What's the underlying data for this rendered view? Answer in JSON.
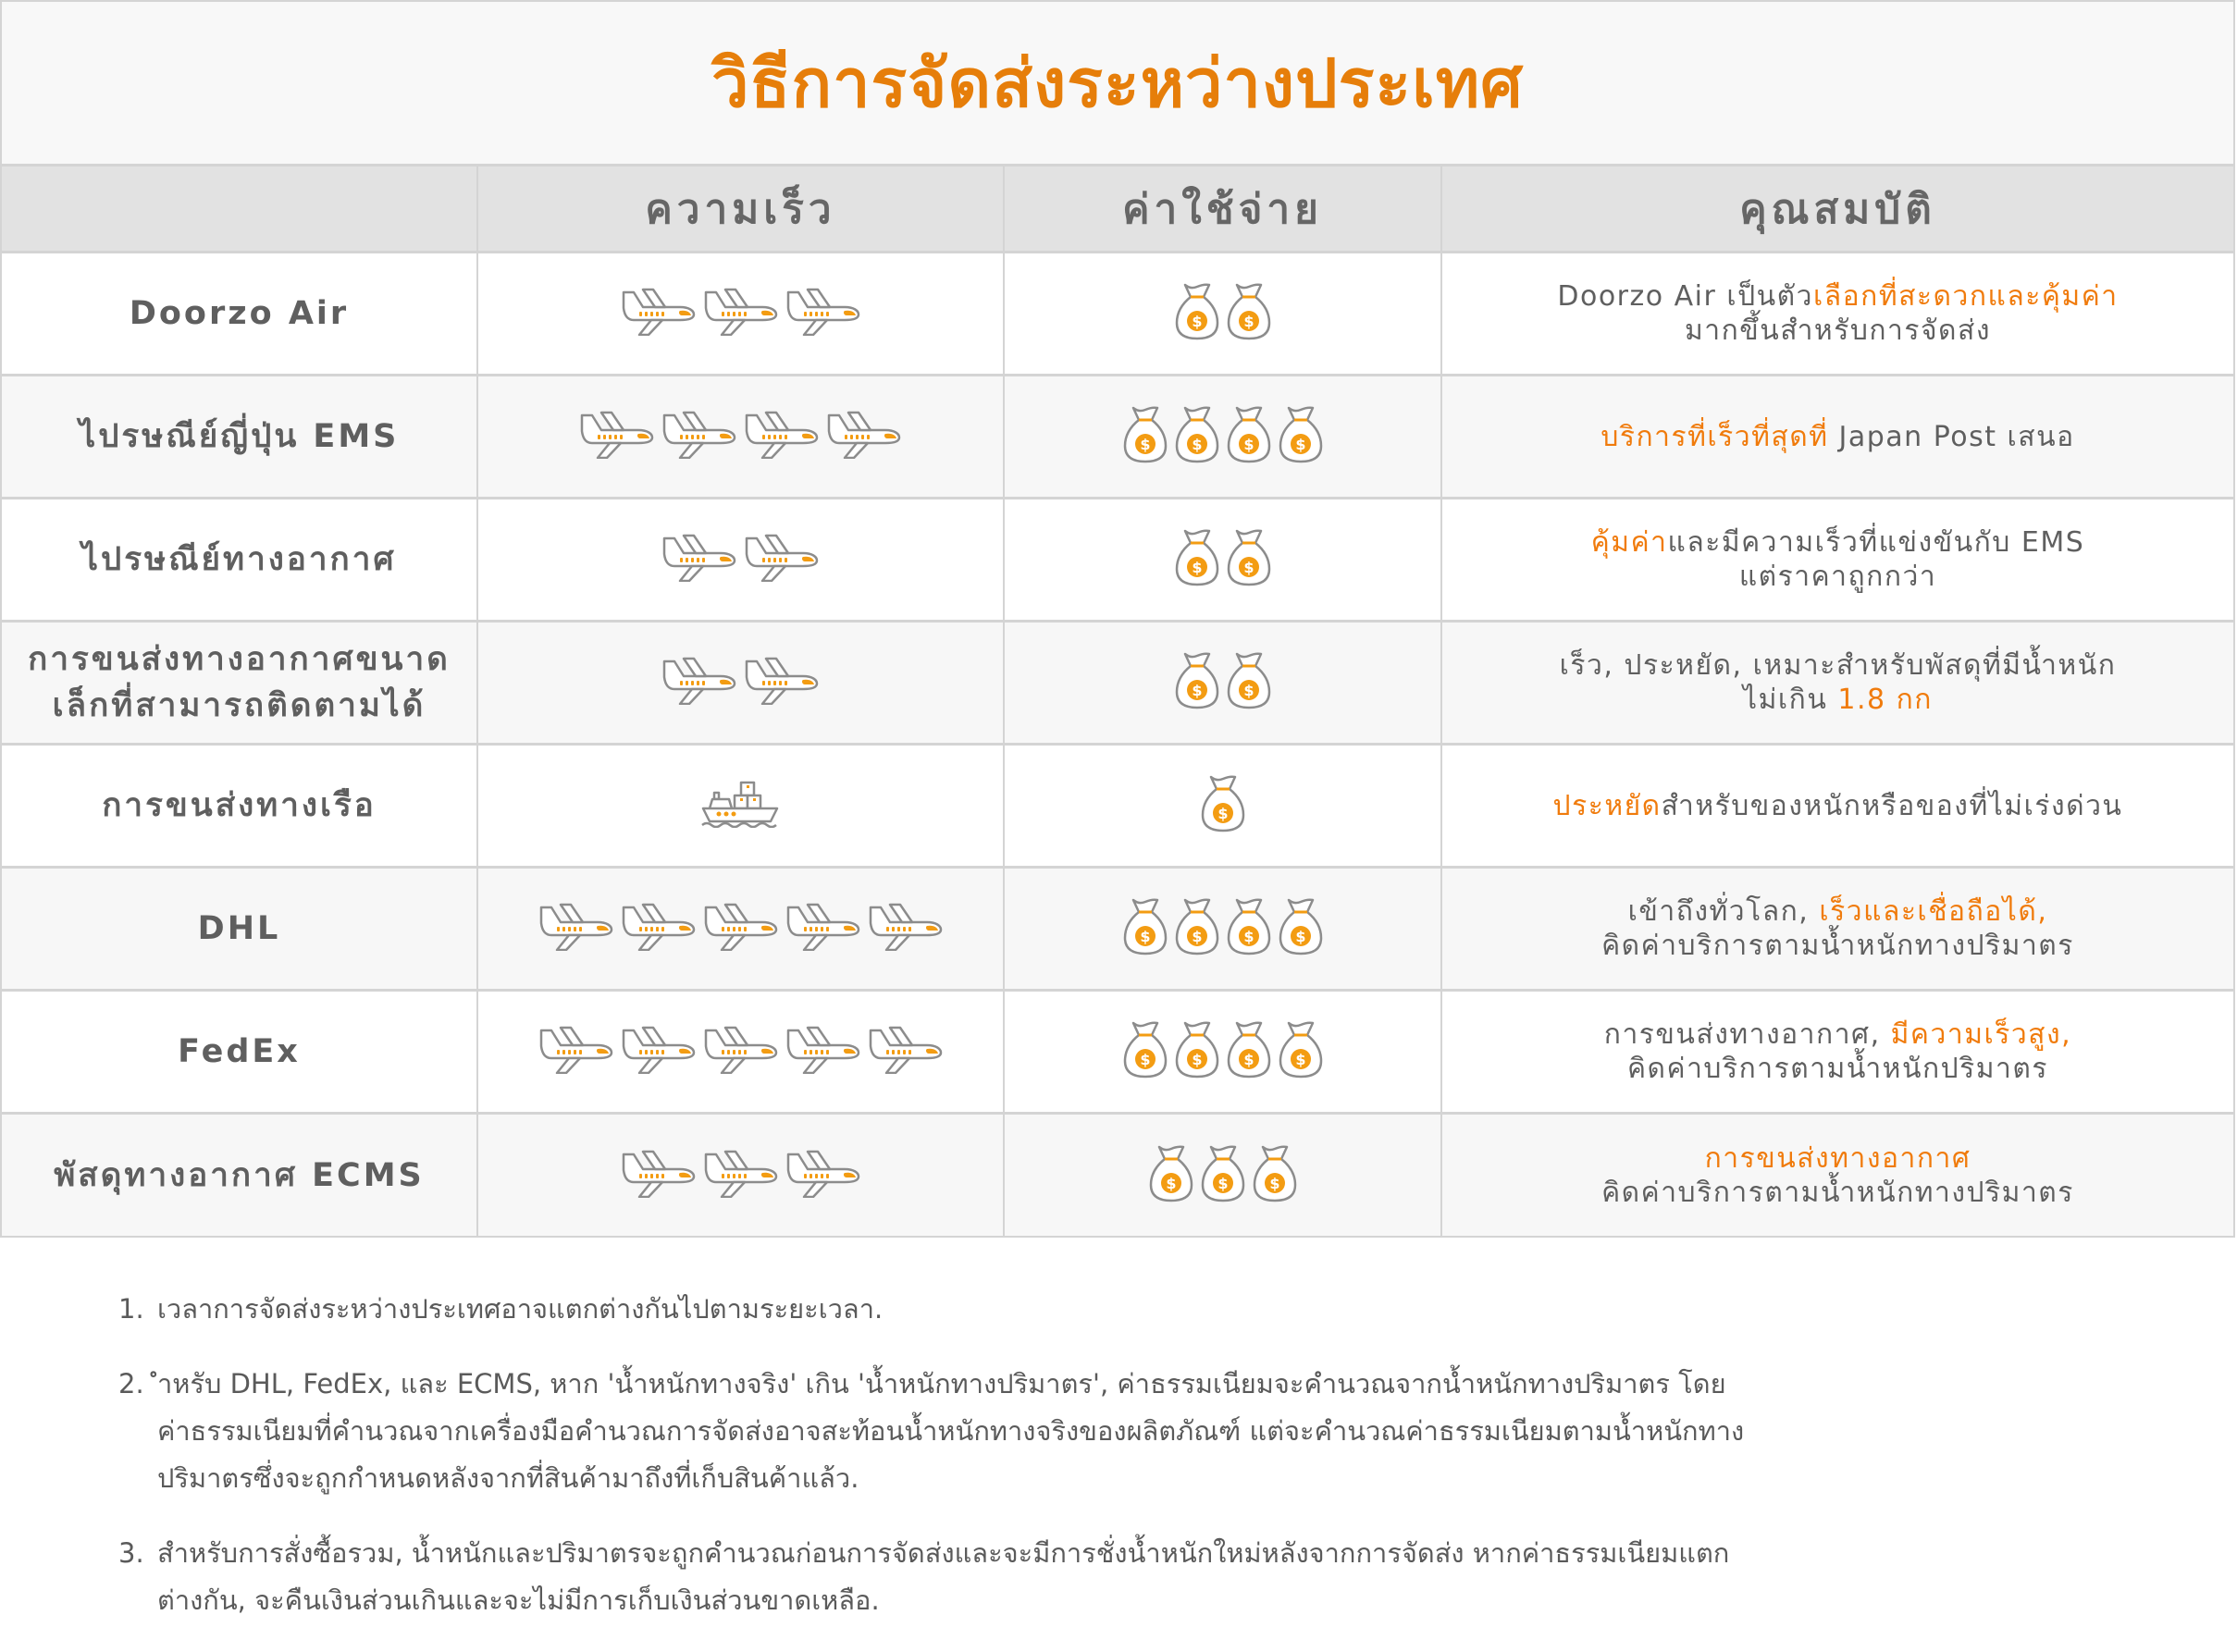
{
  "title": "วิธีการจัดส่งระหว่างประเทศ",
  "headers": [
    "",
    "ความเร็ว",
    "ค่าใช้จ่าย",
    "คุณสมบัติ"
  ],
  "colors": {
    "accent": "#e67e0a",
    "highlight": "#f07b0c",
    "text": "#5f5f5f",
    "header_bg": "#e2e2e2"
  },
  "rows": [
    {
      "name": "Doorzo Air",
      "speed_icon": "airplane-icon",
      "speed": 3,
      "cost": 2,
      "desc": [
        [
          {
            "t": "Doorzo Air เป็นตัว",
            "hl": false
          },
          {
            "t": "เลือกที่สะดวกและคุ้มค่า",
            "hl": true
          }
        ],
        [
          {
            "t": "มากขึ้นสำหรับการจัดส่ง",
            "hl": false
          }
        ]
      ]
    },
    {
      "name": "ไปรษณีย์ญี่ปุ่น EMS",
      "speed_icon": "airplane-icon",
      "speed": 4,
      "cost": 4,
      "desc": [
        [
          {
            "t": "บริการที่เร็วที่สุดที่",
            "hl": true
          },
          {
            "t": " Japan Post เสนอ",
            "hl": false
          }
        ]
      ]
    },
    {
      "name": "ไปรษณีย์ทางอากาศ",
      "speed_icon": "airplane-icon",
      "speed": 2,
      "cost": 2,
      "desc": [
        [
          {
            "t": "คุ้มค่า",
            "hl": true
          },
          {
            "t": "และมีความเร็วที่แข่งขันกับ EMS",
            "hl": false
          }
        ],
        [
          {
            "t": "แต่ราคาถูกกว่า",
            "hl": false
          }
        ]
      ]
    },
    {
      "name": "การขนส่งทางอากาศขนาดเล็กที่สามารถติดตามได้",
      "speed_icon": "airplane-icon",
      "speed": 2,
      "cost": 2,
      "desc": [
        [
          {
            "t": "เร็ว, ประหยัด, เหมาะสำหรับพัสดุที่มีน้ำหนัก",
            "hl": false
          }
        ],
        [
          {
            "t": "ไม่เกิน ",
            "hl": false
          },
          {
            "t": "1.8 กก",
            "hl": true
          }
        ]
      ]
    },
    {
      "name": "การขนส่งทางเรือ",
      "speed_icon": "ship-icon",
      "speed": 1,
      "cost": 1,
      "desc": [
        [
          {
            "t": "ประหยัด",
            "hl": true
          },
          {
            "t": "สำหรับของหนักหรือของที่ไม่เร่งด่วน",
            "hl": false
          }
        ]
      ]
    },
    {
      "name": "DHL",
      "speed_icon": "airplane-icon",
      "speed": 5,
      "cost": 4,
      "desc": [
        [
          {
            "t": "เข้าถึงทั่วโลก, ",
            "hl": false
          },
          {
            "t": "เร็วและเชื่อถือได้,",
            "hl": true
          }
        ],
        [
          {
            "t": "คิดค่าบริการตามน้ำหนักทางปริมาตร",
            "hl": false
          }
        ]
      ]
    },
    {
      "name": "FedEx",
      "speed_icon": "airplane-icon",
      "speed": 5,
      "cost": 4,
      "desc": [
        [
          {
            "t": "การขนส่งทางอากาศ, ",
            "hl": false
          },
          {
            "t": "มีความเร็วสูง,",
            "hl": true
          }
        ],
        [
          {
            "t": "คิดค่าบริการตามน้ำหนักปริมาตร",
            "hl": false
          }
        ]
      ]
    },
    {
      "name": "พัสดุทางอากาศ ECMS",
      "speed_icon": "airplane-icon",
      "speed": 3,
      "cost": 3,
      "desc": [
        [
          {
            "t": "การขนส่งทางอากาศ",
            "hl": true
          }
        ],
        [
          {
            "t": "คิดค่าบริการตามน้ำหนักทางปริมาตร",
            "hl": false
          }
        ]
      ]
    }
  ],
  "notes": [
    {
      "num": "1.",
      "text": "เวลาการจัดส่งระหว่างประเทศอาจแตกต่างกันไปตามระยะเวลา."
    },
    {
      "num": "2.",
      "text": "ำหรับ DHL, FedEx, และ ECMS, หาก 'น้ำหนักทางจริง' เกิน 'น้ำหนักทางปริมาตร', ค่าธรรมเนียมจะคำนวณจากน้ำหนักทางปริมาตร โดยค่าธรรมเนียมที่คำนวณจากเครื่องมือคำนวณการจัดส่งอาจสะท้อนน้ำหนักทางจริงของผลิตภัณฑ์ แต่จะคำนวณค่าธรรมเนียมตามน้ำหนักทางปริมาตรซึ่งจะถูกกำหนดหลังจากที่สินค้ามาถึงที่เก็บสินค้าแล้ว."
    },
    {
      "num": "3.",
      "text": "สำหรับการสั่งซื้อรวม, น้ำหนักและปริมาตรจะถูกคำนวณก่อนการจัดส่งและจะมีการชั่งน้ำหนักใหม่หลังจากการจัดส่ง หากค่าธรรมเนียมแตกต่างกัน, จะคืนเงินส่วนเกินและจะไม่มีการเก็บเงินส่วนขาดเหลือ."
    }
  ]
}
